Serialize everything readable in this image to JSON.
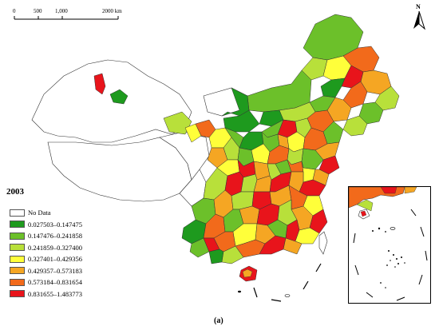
{
  "scale_bar": {
    "ticks": [
      "0",
      "500",
      "1,000",
      "2000 km"
    ]
  },
  "north_arrow": {
    "label": "N"
  },
  "year": "2003",
  "legend": [
    {
      "label": "No Data",
      "color": "#ffffff"
    },
    {
      "label": "0.027503–0.147475",
      "color": "#1e9a1e"
    },
    {
      "label": "0.147476–0.241858",
      "color": "#6cc02a"
    },
    {
      "label": "0.241859–0.327400",
      "color": "#b8e03a"
    },
    {
      "label": "0.327401–0.429356",
      "color": "#ffff3a"
    },
    {
      "label": "0.429357–0.573183",
      "color": "#f5a623"
    },
    {
      "label": "0.573184–0.831654",
      "color": "#f26a1b"
    },
    {
      "label": "0.831655–1.483773",
      "color": "#e8141b"
    }
  ],
  "caption": "(a)"
}
